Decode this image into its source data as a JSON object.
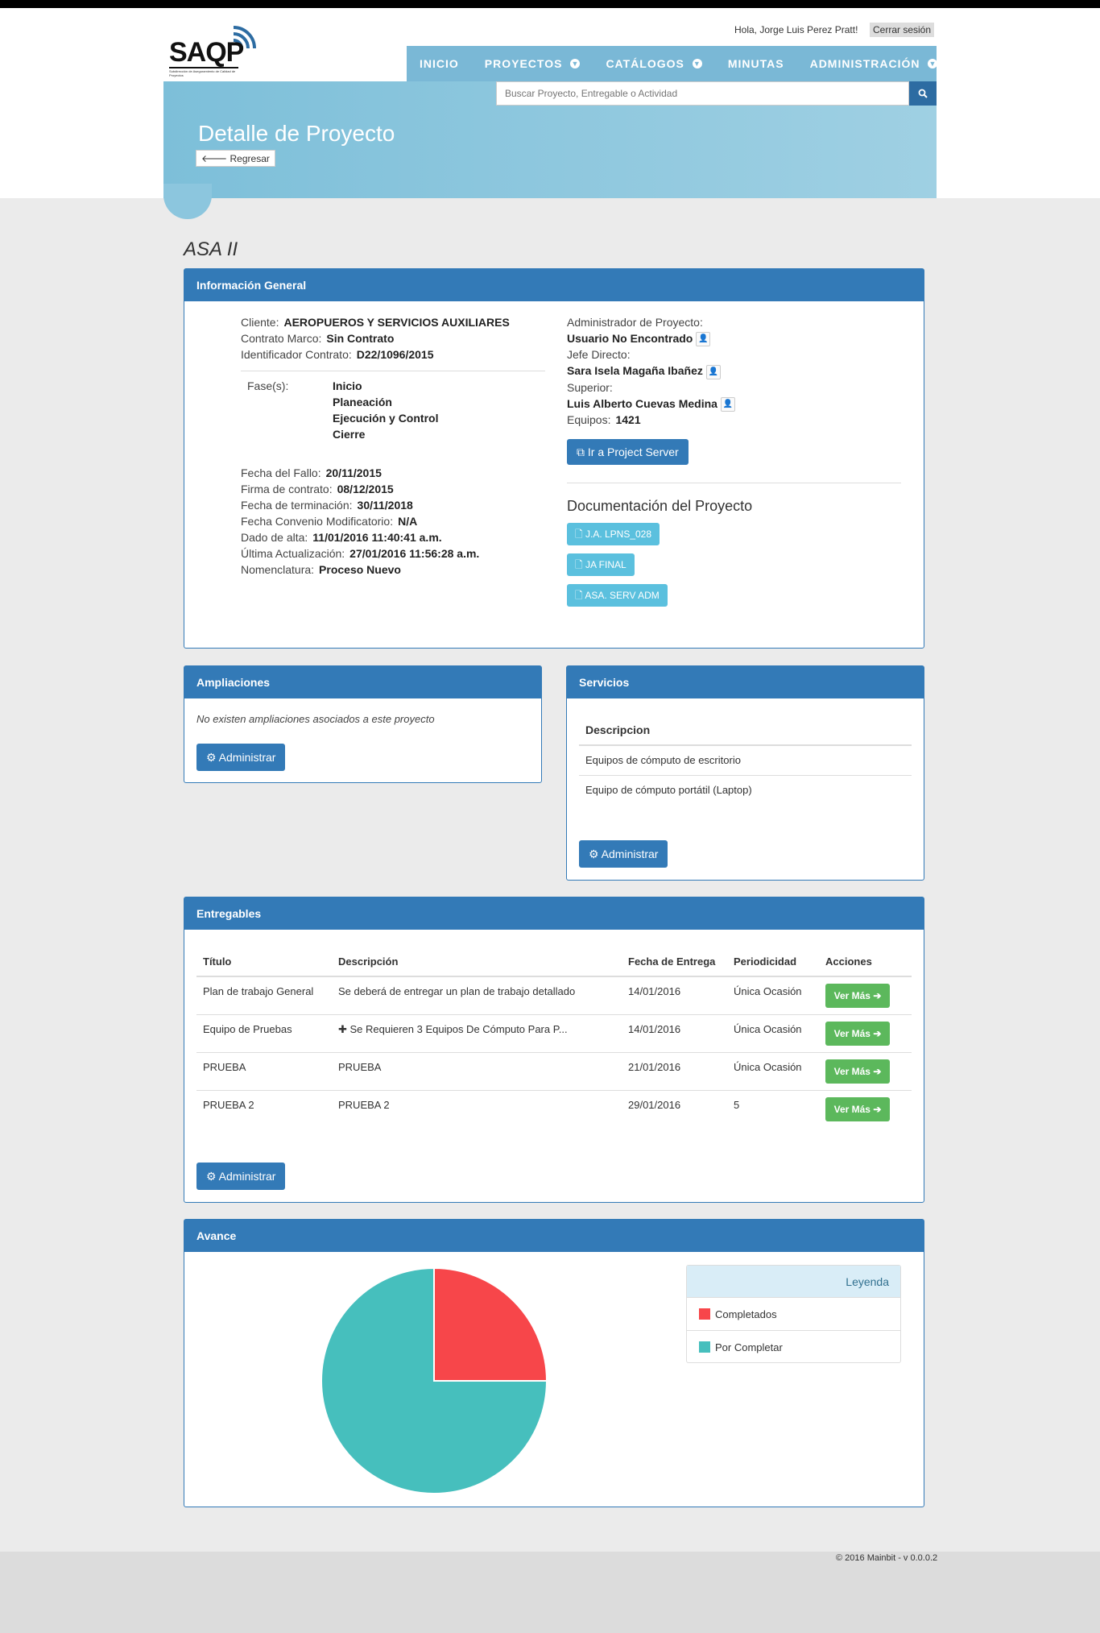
{
  "header": {
    "logo": "SAQP",
    "logo_sub": "Subdirección de Aseguramiento de Calidad de Proyectos",
    "greeting": "Hola, Jorge Luis Perez Pratt!",
    "logout": "Cerrar sesión",
    "nav": [
      {
        "label": "INICIO",
        "dropdown": false
      },
      {
        "label": "PROYECTOS",
        "dropdown": true
      },
      {
        "label": "CATÁLOGOS",
        "dropdown": true
      },
      {
        "label": "MINUTAS",
        "dropdown": false
      },
      {
        "label": "ADMINISTRACIÓN",
        "dropdown": true
      }
    ],
    "search_placeholder": "Buscar Proyecto, Entregable o Actividad",
    "page_title": "Detalle de Proyecto",
    "back_label": "Regresar"
  },
  "project_name": "ASA II",
  "info": {
    "title": "Información General",
    "cliente_label": "Cliente:",
    "cliente": "AEROPUEROS Y SERVICIOS AUXILIARES",
    "contrato_label": "Contrato Marco:",
    "contrato": "Sin Contrato",
    "ident_label": "Identificador Contrato:",
    "ident": "D22/1096/2015",
    "fases_label": "Fase(s):",
    "fases": [
      "Inicio",
      "Planeación",
      "Ejecución y Control",
      "Cierre"
    ],
    "fechas": [
      {
        "label": "Fecha del Fallo:",
        "value": "20/11/2015"
      },
      {
        "label": "Firma de contrato:",
        "value": "08/12/2015"
      },
      {
        "label": "Fecha de terminación:",
        "value": "30/11/2018"
      },
      {
        "label": "Fecha Convenio Modificatorio:",
        "value": "N/A"
      },
      {
        "label": "Dado de alta:",
        "value": "11/01/2016 11:40:41 a.m."
      },
      {
        "label": "Última Actualización:",
        "value": "27/01/2016 11:56:28 a.m."
      },
      {
        "label": "Nomenclatura:",
        "value": "Proceso Nuevo"
      }
    ],
    "admin_label": "Administrador de Proyecto:",
    "admin": "Usuario No Encontrado",
    "jefe_label": "Jefe Directo:",
    "jefe": "Sara Isela Magaña Ibañez",
    "superior_label": "Superior:",
    "superior": "Luis Alberto Cuevas Medina",
    "equipos_label": "Equipos:",
    "equipos": "1421",
    "project_server": "Ir a Project Server",
    "docs_title": "Documentación del Proyecto",
    "docs": [
      "J.A. LPNS_028",
      "JA FINAL",
      "ASA. SERV ADM"
    ]
  },
  "ampliaciones": {
    "title": "Ampliaciones",
    "empty": "No existen ampliaciones asociados a este proyecto",
    "admin": "Administrar"
  },
  "servicios": {
    "title": "Servicios",
    "header": "Descripcion",
    "rows": [
      "Equipos de cómputo de escritorio",
      "Equipo de cómputo portátil (Laptop)"
    ],
    "admin": "Administrar"
  },
  "entregables": {
    "title": "Entregables",
    "columns": [
      "Título",
      "Descripción",
      "Fecha de Entrega",
      "Periodicidad",
      "Acciones"
    ],
    "rows": [
      {
        "titulo": "Plan de trabajo General",
        "desc": "Se deberá de entregar un plan de trabajo detallado",
        "fecha": "14/01/2016",
        "period": "Única Ocasión",
        "action": "Ver Más"
      },
      {
        "titulo": "Equipo de Pruebas",
        "desc": "Se Requieren 3 Equipos De Cómputo Para P...",
        "fecha": "14/01/2016",
        "period": "Única Ocasión",
        "action": "Ver Más"
      },
      {
        "titulo": "PRUEBA",
        "desc": "PRUEBA",
        "fecha": "21/01/2016",
        "period": "Única Ocasión",
        "action": "Ver Más"
      },
      {
        "titulo": "PRUEBA 2",
        "desc": "PRUEBA 2",
        "fecha": "29/01/2016",
        "period": "5",
        "action": "Ver Más"
      }
    ],
    "admin": "Administrar"
  },
  "avance": {
    "title": "Avance",
    "legend_title": "Leyenda",
    "legend": [
      {
        "label": "Completados",
        "color": "#f7464a"
      },
      {
        "label": "Por Completar",
        "color": "#46bfbd"
      }
    ]
  },
  "chart_data": {
    "type": "pie",
    "labels": [
      "Completados",
      "Por Completar"
    ],
    "values": [
      1,
      3
    ],
    "colors": [
      "#f7464a",
      "#46bfbd"
    ]
  },
  "footer": "© 2016 Mainbit - v 0.0.0.2"
}
